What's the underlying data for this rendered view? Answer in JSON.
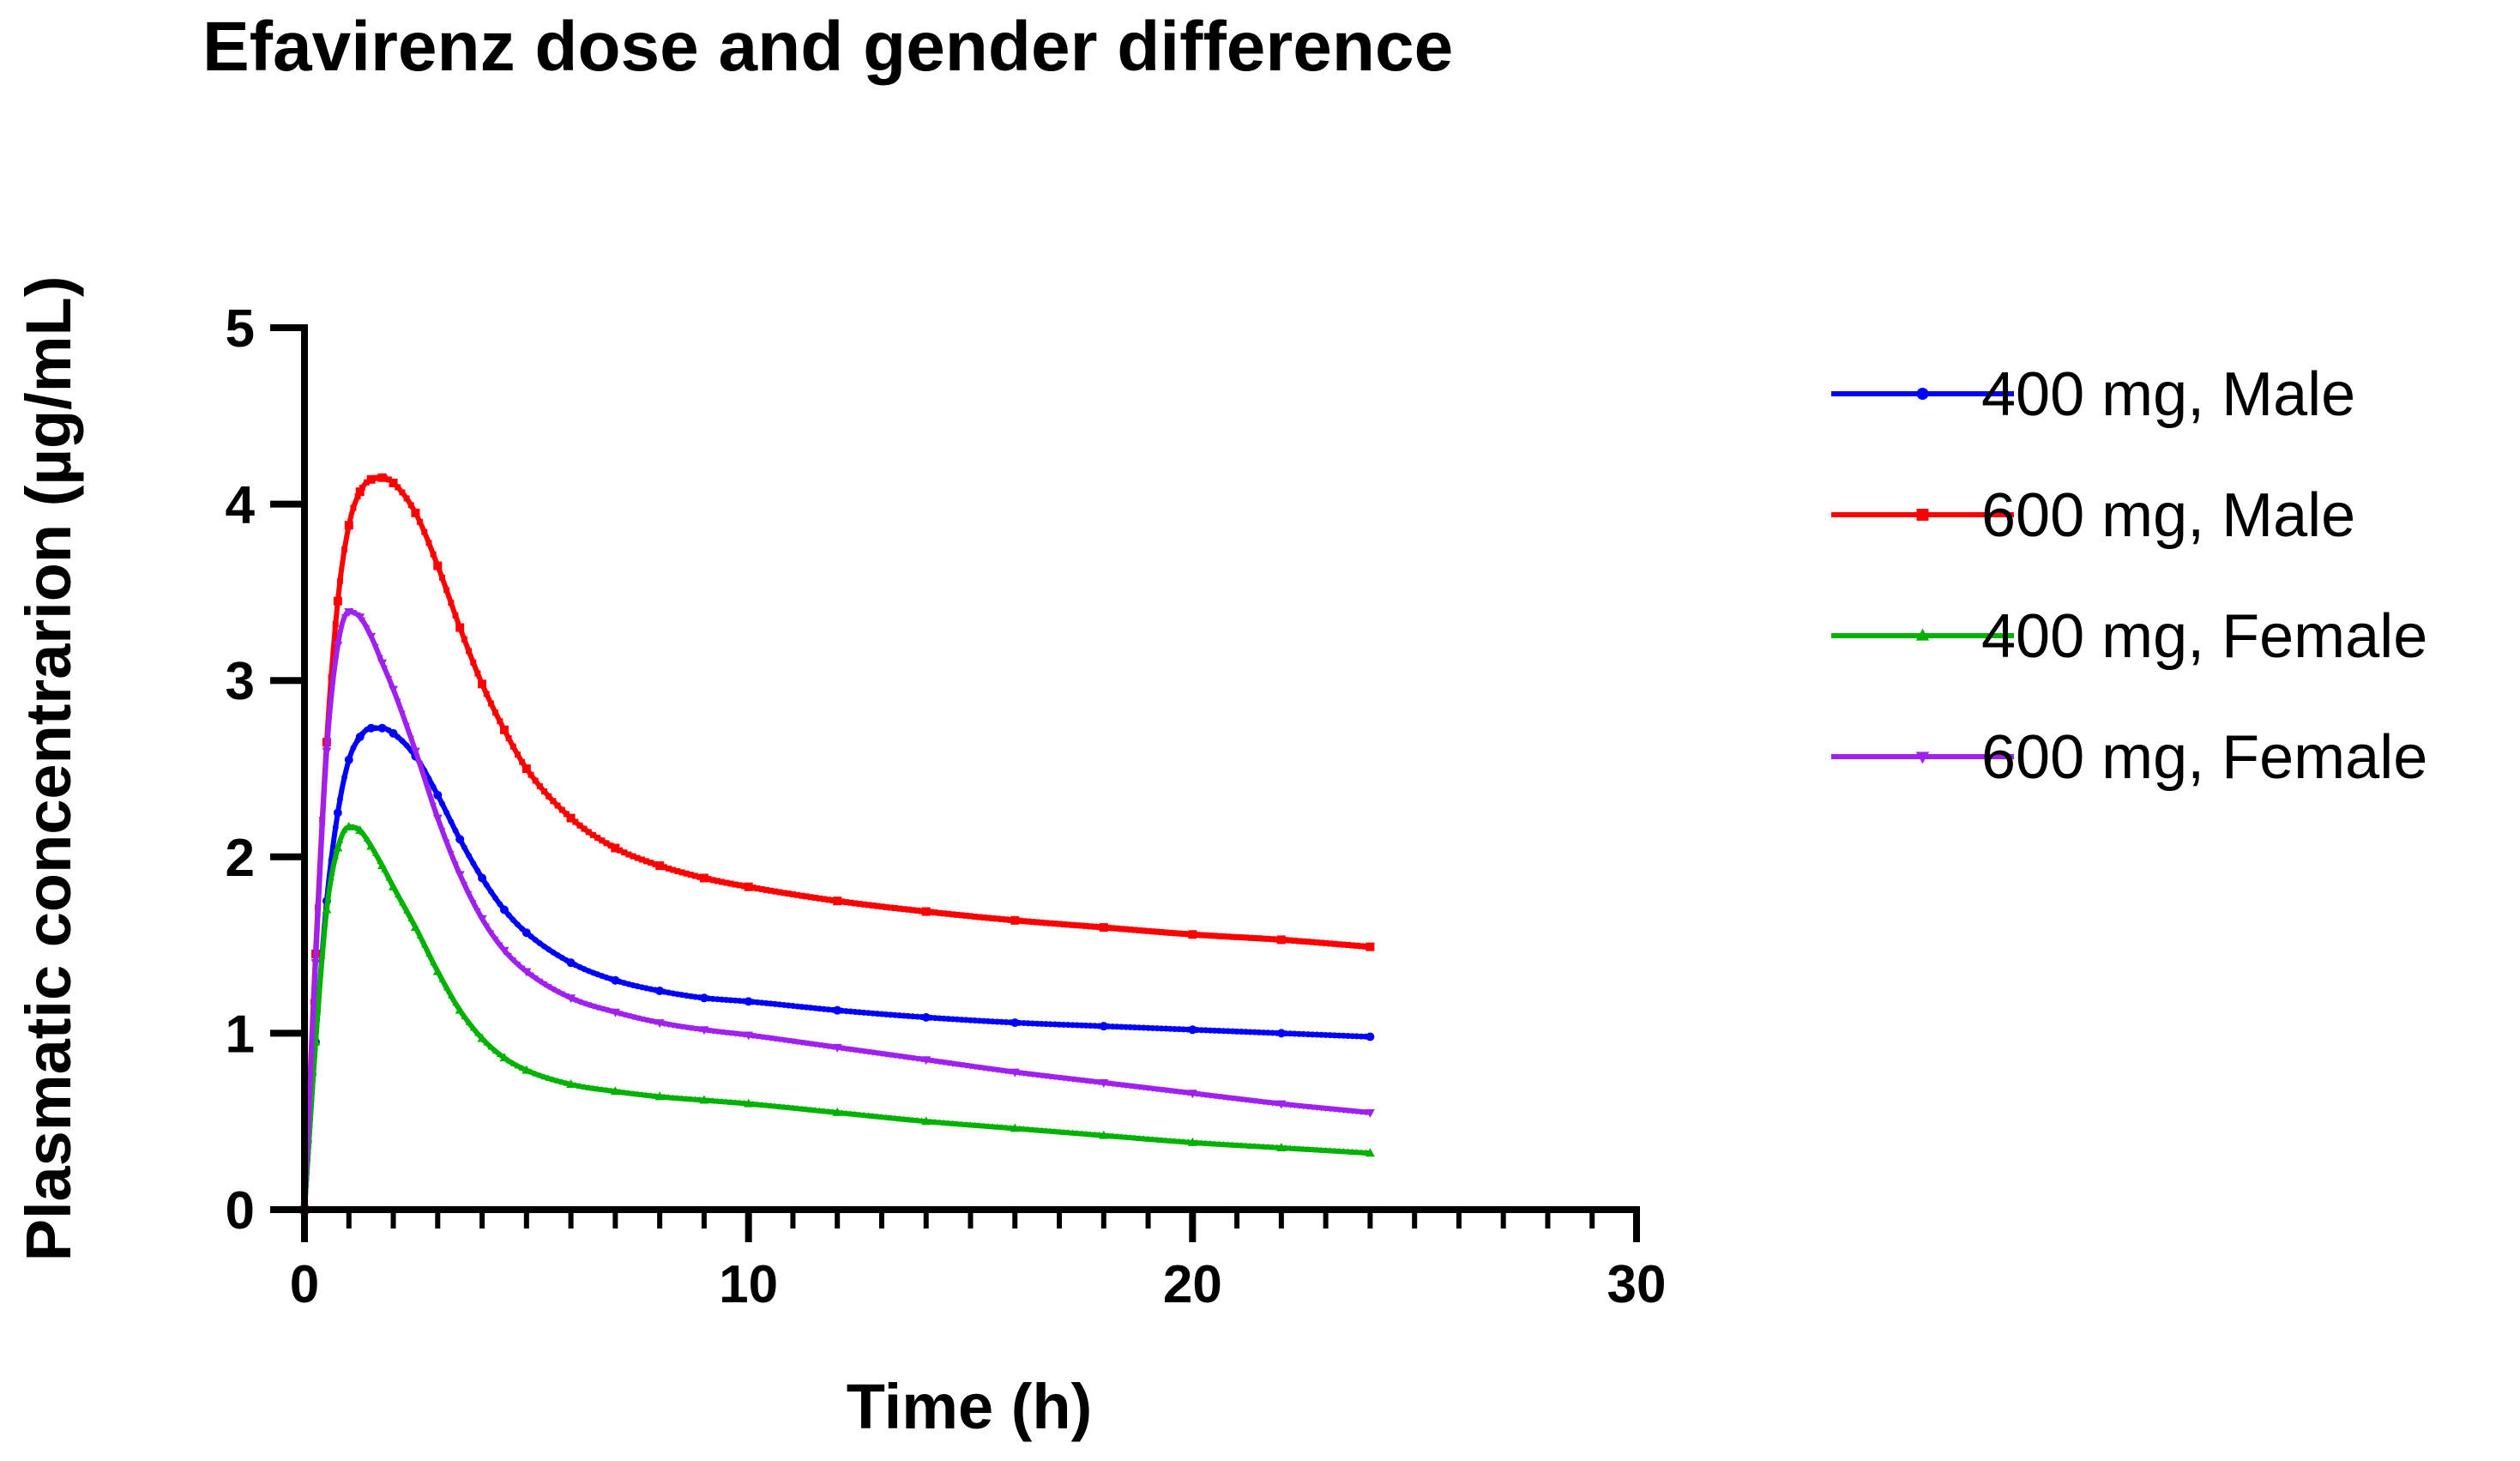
{
  "chart_data": {
    "type": "line",
    "title": "Efavirenz dose and gender difference",
    "xlabel": "Time (h)",
    "ylabel": "Plasmatic concentrarion (µg/mL)",
    "xlim": [
      0,
      30
    ],
    "ylim": [
      0,
      5
    ],
    "x_major_ticks": [
      0,
      10,
      20,
      30
    ],
    "x_tick_labels": [
      "0",
      "10",
      "20",
      "30"
    ],
    "x_minor_step": 1,
    "y_major_ticks": [
      0,
      1,
      2,
      3,
      4,
      5
    ],
    "y_tick_labels": [
      "0",
      "1",
      "2",
      "3",
      "4",
      "5"
    ],
    "grid": false,
    "legend_position": "right",
    "series": [
      {
        "name": "400 mg, Male",
        "color": "#0000ff",
        "marker": "circle",
        "x": [
          0,
          0.25,
          0.5,
          0.75,
          1.0,
          1.25,
          1.5,
          1.75,
          2.0,
          2.5,
          3.0,
          3.5,
          4.0,
          4.5,
          5.0,
          6.0,
          7.0,
          8.0,
          9.0,
          10.0,
          12.0,
          14.0,
          16.0,
          18.0,
          20.0,
          22.0,
          24.0
        ],
        "y": [
          0,
          0.95,
          1.75,
          2.25,
          2.55,
          2.68,
          2.73,
          2.73,
          2.7,
          2.57,
          2.35,
          2.1,
          1.88,
          1.7,
          1.57,
          1.4,
          1.3,
          1.24,
          1.2,
          1.18,
          1.13,
          1.09,
          1.06,
          1.04,
          1.02,
          1.0,
          0.98
        ]
      },
      {
        "name": "600 mg, Male",
        "color": "#ff0000",
        "marker": "square",
        "x": [
          0,
          0.25,
          0.5,
          0.75,
          1.0,
          1.25,
          1.5,
          1.75,
          2.0,
          2.5,
          3.0,
          3.5,
          4.0,
          4.5,
          5.0,
          6.0,
          7.0,
          8.0,
          9.0,
          10.0,
          12.0,
          14.0,
          16.0,
          18.0,
          20.0,
          22.0,
          24.0
        ],
        "y": [
          0,
          1.45,
          2.65,
          3.45,
          3.88,
          4.07,
          4.14,
          4.15,
          4.12,
          3.95,
          3.65,
          3.3,
          2.98,
          2.72,
          2.5,
          2.22,
          2.05,
          1.95,
          1.88,
          1.83,
          1.75,
          1.69,
          1.64,
          1.6,
          1.56,
          1.53,
          1.49
        ]
      },
      {
        "name": "400 mg, Female",
        "color": "#00b200",
        "marker": "triangle",
        "x": [
          0,
          0.25,
          0.5,
          0.75,
          1.0,
          1.25,
          1.5,
          1.75,
          2.0,
          2.5,
          3.0,
          3.5,
          4.0,
          4.5,
          5.0,
          6.0,
          7.0,
          8.0,
          9.0,
          10.0,
          12.0,
          14.0,
          16.0,
          18.0,
          20.0,
          22.0,
          24.0
        ],
        "y": [
          0,
          0.95,
          1.7,
          2.05,
          2.17,
          2.15,
          2.06,
          1.95,
          1.83,
          1.6,
          1.35,
          1.13,
          0.97,
          0.86,
          0.79,
          0.71,
          0.67,
          0.64,
          0.62,
          0.6,
          0.55,
          0.5,
          0.46,
          0.42,
          0.38,
          0.35,
          0.32
        ]
      },
      {
        "name": "600 mg, Female",
        "color": "#a020f0",
        "marker": "inverted-triangle",
        "x": [
          0,
          0.25,
          0.5,
          0.75,
          1.0,
          1.25,
          1.5,
          1.75,
          2.0,
          2.5,
          3.0,
          3.5,
          4.0,
          4.5,
          5.0,
          6.0,
          7.0,
          8.0,
          9.0,
          10.0,
          12.0,
          14.0,
          16.0,
          18.0,
          20.0,
          22.0,
          24.0
        ],
        "y": [
          0,
          1.4,
          2.6,
          3.2,
          3.39,
          3.36,
          3.25,
          3.1,
          2.95,
          2.6,
          2.22,
          1.9,
          1.65,
          1.47,
          1.35,
          1.2,
          1.12,
          1.06,
          1.02,
          0.99,
          0.92,
          0.85,
          0.78,
          0.72,
          0.66,
          0.6,
          0.55
        ]
      }
    ]
  }
}
